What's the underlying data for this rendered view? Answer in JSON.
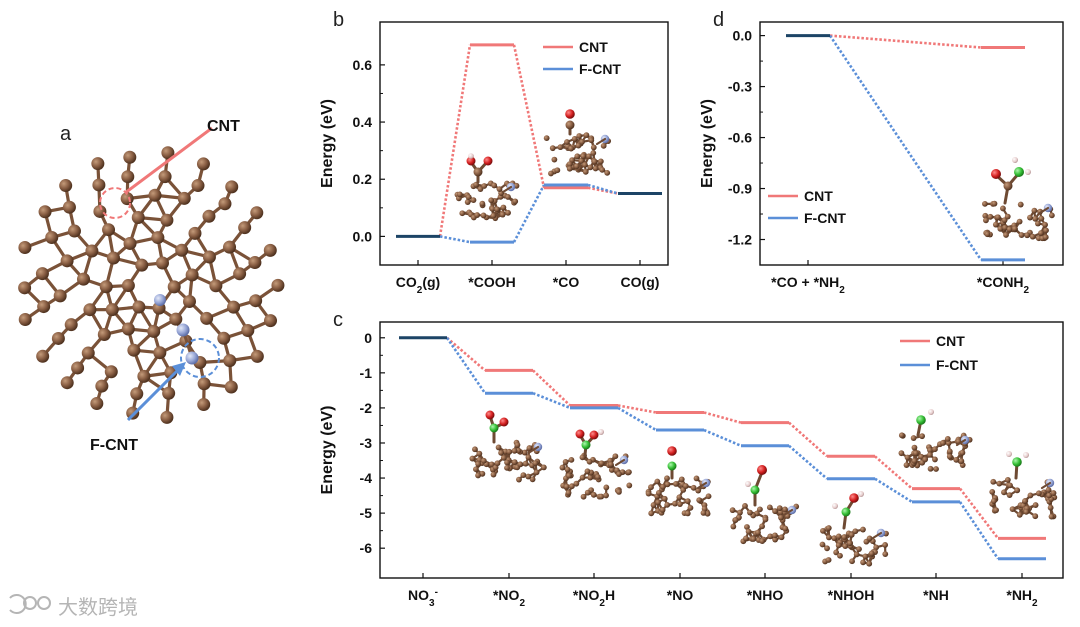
{
  "colors": {
    "cnt": "#f07878",
    "fcnt": "#5b8fd8",
    "ref": "#1c4466",
    "carbon": "#8b6045",
    "fluorine": "#8e9fd0",
    "oxygen": "#cc2222",
    "nitrogen": "#33bb33",
    "hydrogen": "#e4c9c9"
  },
  "panel_a": {
    "label": "a",
    "cnt_label": "CNT",
    "fcnt_label": "F-CNT"
  },
  "watermark": "大数跨境",
  "chart_data": [
    {
      "id": "b",
      "type": "energy_profile",
      "panel_label": "b",
      "ylabel": "Energy (eV)",
      "xlabel": "",
      "ylim": [
        -0.1,
        0.75
      ],
      "yticks": [
        "0.0",
        "0.2",
        "0.4",
        "0.6"
      ],
      "ytick_values": [
        0,
        0.2,
        0.4,
        0.6
      ],
      "categories": [
        "CO2(g)",
        "*COOH",
        "*CO",
        "CO(g)"
      ],
      "category_labels": [
        {
          "main": "CO",
          "sub": "2",
          "tail": "(g)"
        },
        {
          "main": "*COOH",
          "sub": "",
          "tail": ""
        },
        {
          "main": "*CO",
          "sub": "",
          "tail": ""
        },
        {
          "main": "CO(g)",
          "sub": "",
          "tail": ""
        }
      ],
      "legend": [
        "CNT",
        "F-CNT"
      ],
      "series": [
        {
          "name": "CNT",
          "values": [
            0.0,
            0.67,
            0.17,
            0.15
          ]
        },
        {
          "name": "F-CNT",
          "values": [
            0.0,
            -0.02,
            0.18,
            0.15
          ]
        }
      ],
      "shared_levels": [
        0,
        3
      ]
    },
    {
      "id": "d",
      "type": "energy_profile",
      "panel_label": "d",
      "ylabel": "Energy (eV)",
      "xlabel": "",
      "ylim": [
        -1.35,
        0.08
      ],
      "yticks": [
        "0.0",
        "-0.3",
        "-0.6",
        "-0.9",
        "-1.2"
      ],
      "ytick_values": [
        0,
        -0.3,
        -0.6,
        -0.9,
        -1.2
      ],
      "categories": [
        "*CO + *NH2",
        "*CONH2"
      ],
      "category_labels": [
        {
          "main": "*CO + *NH",
          "sub": "2",
          "tail": ""
        },
        {
          "main": "*CONH",
          "sub": "2",
          "tail": ""
        }
      ],
      "legend": [
        "CNT",
        "F-CNT"
      ],
      "series": [
        {
          "name": "CNT",
          "values": [
            0.0,
            -0.07
          ]
        },
        {
          "name": "F-CNT",
          "values": [
            0.0,
            -1.32
          ]
        }
      ],
      "shared_levels": [
        0
      ]
    },
    {
      "id": "c",
      "type": "energy_profile",
      "panel_label": "c",
      "ylabel": "Energy (eV)",
      "xlabel": "",
      "ylim": [
        -6.85,
        0.45
      ],
      "yticks": [
        "0",
        "-1",
        "-2",
        "-3",
        "-4",
        "-5",
        "-6"
      ],
      "ytick_values": [
        0,
        -1,
        -2,
        -3,
        -4,
        -5,
        -6
      ],
      "categories": [
        "NO3-",
        "*NO2",
        "*NO2H",
        "*NO",
        "*NHO",
        "*NHOH",
        "*NH",
        "*NH2"
      ],
      "category_labels": [
        {
          "main": "NO",
          "sub": "3",
          "sup": "-",
          "tail": ""
        },
        {
          "main": "*NO",
          "sub": "2",
          "tail": ""
        },
        {
          "main": "*NO",
          "sub": "2",
          "tail": "H"
        },
        {
          "main": "*NO",
          "sub": "",
          "tail": ""
        },
        {
          "main": "*NHO",
          "sub": "",
          "tail": ""
        },
        {
          "main": "*NHOH",
          "sub": "",
          "tail": ""
        },
        {
          "main": "*NH",
          "sub": "",
          "tail": ""
        },
        {
          "main": "*NH",
          "sub": "2",
          "tail": ""
        }
      ],
      "legend": [
        "CNT",
        "F-CNT"
      ],
      "series": [
        {
          "name": "CNT",
          "values": [
            0.0,
            -0.93,
            -1.93,
            -2.13,
            -2.42,
            -3.38,
            -4.3,
            -5.72
          ]
        },
        {
          "name": "F-CNT",
          "values": [
            0.0,
            -1.58,
            -2.0,
            -2.63,
            -3.08,
            -4.02,
            -4.68,
            -6.3
          ]
        }
      ],
      "shared_levels": [
        0
      ]
    }
  ]
}
